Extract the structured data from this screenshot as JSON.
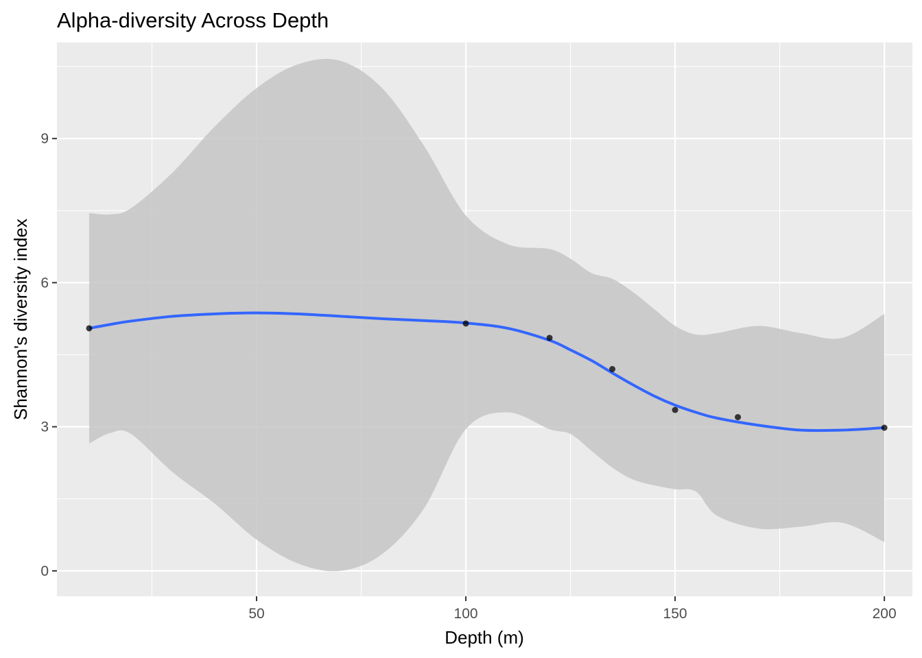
{
  "chart_data": {
    "type": "line",
    "title": "Alpha-diversity Across Depth",
    "xlabel": "Depth (m)",
    "ylabel": "Shannon's diversity index",
    "xlim": [
      2.3,
      206.7
    ],
    "ylim": [
      -0.53,
      11.0
    ],
    "x_ticks": [
      50,
      100,
      150,
      200
    ],
    "y_ticks": [
      0,
      3,
      6,
      9
    ],
    "x_minor": [
      25,
      75,
      125,
      175
    ],
    "y_minor": [
      1.5,
      4.5,
      7.5,
      10.5
    ],
    "grid": true,
    "points": {
      "x": [
        10,
        100,
        120,
        135,
        150,
        165,
        200
      ],
      "y": [
        5.05,
        5.15,
        4.85,
        4.2,
        3.35,
        3.2,
        2.98
      ]
    },
    "smooth": {
      "name": "loess",
      "x": [
        10,
        15,
        20,
        30,
        40,
        50,
        60,
        70,
        80,
        90,
        100,
        110,
        120,
        125,
        130,
        135,
        140,
        145,
        150,
        155,
        160,
        170,
        180,
        190,
        200
      ],
      "y": [
        5.05,
        5.13,
        5.2,
        5.3,
        5.35,
        5.37,
        5.35,
        5.3,
        5.25,
        5.21,
        5.16,
        5.05,
        4.8,
        4.6,
        4.38,
        4.12,
        3.87,
        3.64,
        3.45,
        3.3,
        3.18,
        3.03,
        2.93,
        2.93,
        2.98
      ],
      "ci_upper": [
        7.45,
        7.42,
        7.55,
        8.3,
        9.25,
        10.05,
        10.55,
        10.62,
        10.05,
        8.85,
        7.4,
        6.8,
        6.7,
        6.5,
        6.2,
        6.08,
        5.8,
        5.45,
        5.1,
        4.92,
        4.95,
        5.1,
        4.95,
        4.85,
        5.35
      ],
      "ci_lower": [
        2.65,
        2.87,
        2.85,
        2.05,
        1.4,
        0.65,
        0.15,
        0.0,
        0.35,
        1.3,
        2.95,
        3.3,
        2.95,
        2.85,
        2.5,
        2.15,
        1.9,
        1.78,
        1.7,
        1.65,
        1.15,
        0.88,
        0.92,
        1.0,
        0.6
      ]
    },
    "colors": {
      "panel": "#ebebeb",
      "grid": "#ffffff",
      "ribbon": "#c6c6c6",
      "line": "#3366ff",
      "point": "#000000"
    }
  }
}
